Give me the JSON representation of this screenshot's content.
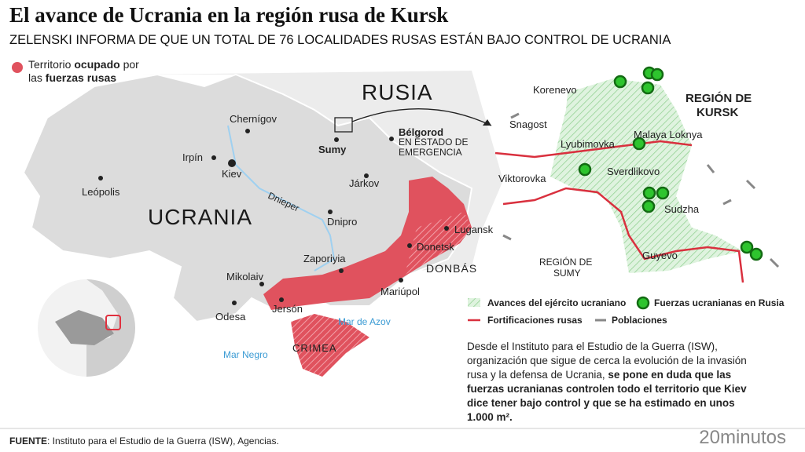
{
  "header": {
    "title": "El avance de Ucrania en la región rusa de Kursk",
    "subtitle": "ZELENSKI INFORMA DE QUE UN TOTAL DE 76 LOCALIDADES RUSAS ESTÁN BAJO CONTROL DE UCRANIA"
  },
  "legend_top": {
    "parts": [
      "Territorio",
      "ocupado",
      "por",
      "las",
      "fuerzas rusas"
    ]
  },
  "map": {
    "labels": [
      "RUSIA",
      "UCRANIA",
      "Chernígov",
      "Irpín",
      "Kiev",
      "Leópolis",
      "Sumy",
      "Bélgorod",
      "Járkov",
      "Dnieper",
      "Dnipro",
      "Lugansk",
      "Donetsk",
      "DONBÁS",
      "Zaporiyia",
      "Mikolaiv",
      "Jersón",
      "Odesa",
      "Mariúpol",
      "Mar de Azov",
      "CRIMEA",
      "Mar Negro"
    ],
    "emergency": [
      "EN ESTADO DE",
      "EMERGENCIA"
    ]
  },
  "kursk_map": {
    "region_title": [
      "REGIÓN DE",
      "KURSK"
    ],
    "labels": [
      "Korenevo",
      "Snagost",
      "Lyubimovka",
      "Malaya Loknya",
      "Sverdlikovo",
      "Viktorovka",
      "Sudzha",
      "Guyevo"
    ],
    "sumy_region": [
      "REGIÓN DE",
      "SUMY"
    ]
  },
  "legend": {
    "items": [
      "Avances del ejército ucraniano",
      "Fuerzas ucranianas en Rusia",
      "Fortificaciones rusas",
      "Poblaciones"
    ]
  },
  "paragraph": {
    "text": "Desde el Instituto para el Estudio de la Guerra (ISW), organización que sigue de cerca la evolución de la invasión rusa y la defensa de Ucrania,",
    "emphasis": "se pone en duda que las fuerzas ucranianas controlen todo el territorio que Kiev dice tener bajo control y que se ha estimado en unos 1.000 m²."
  },
  "footer": {
    "source_label": "FUENTE",
    "source": ": Instituto para el Estudio de la Guerra (ISW), Agencias.",
    "logo": "20minutos"
  }
}
